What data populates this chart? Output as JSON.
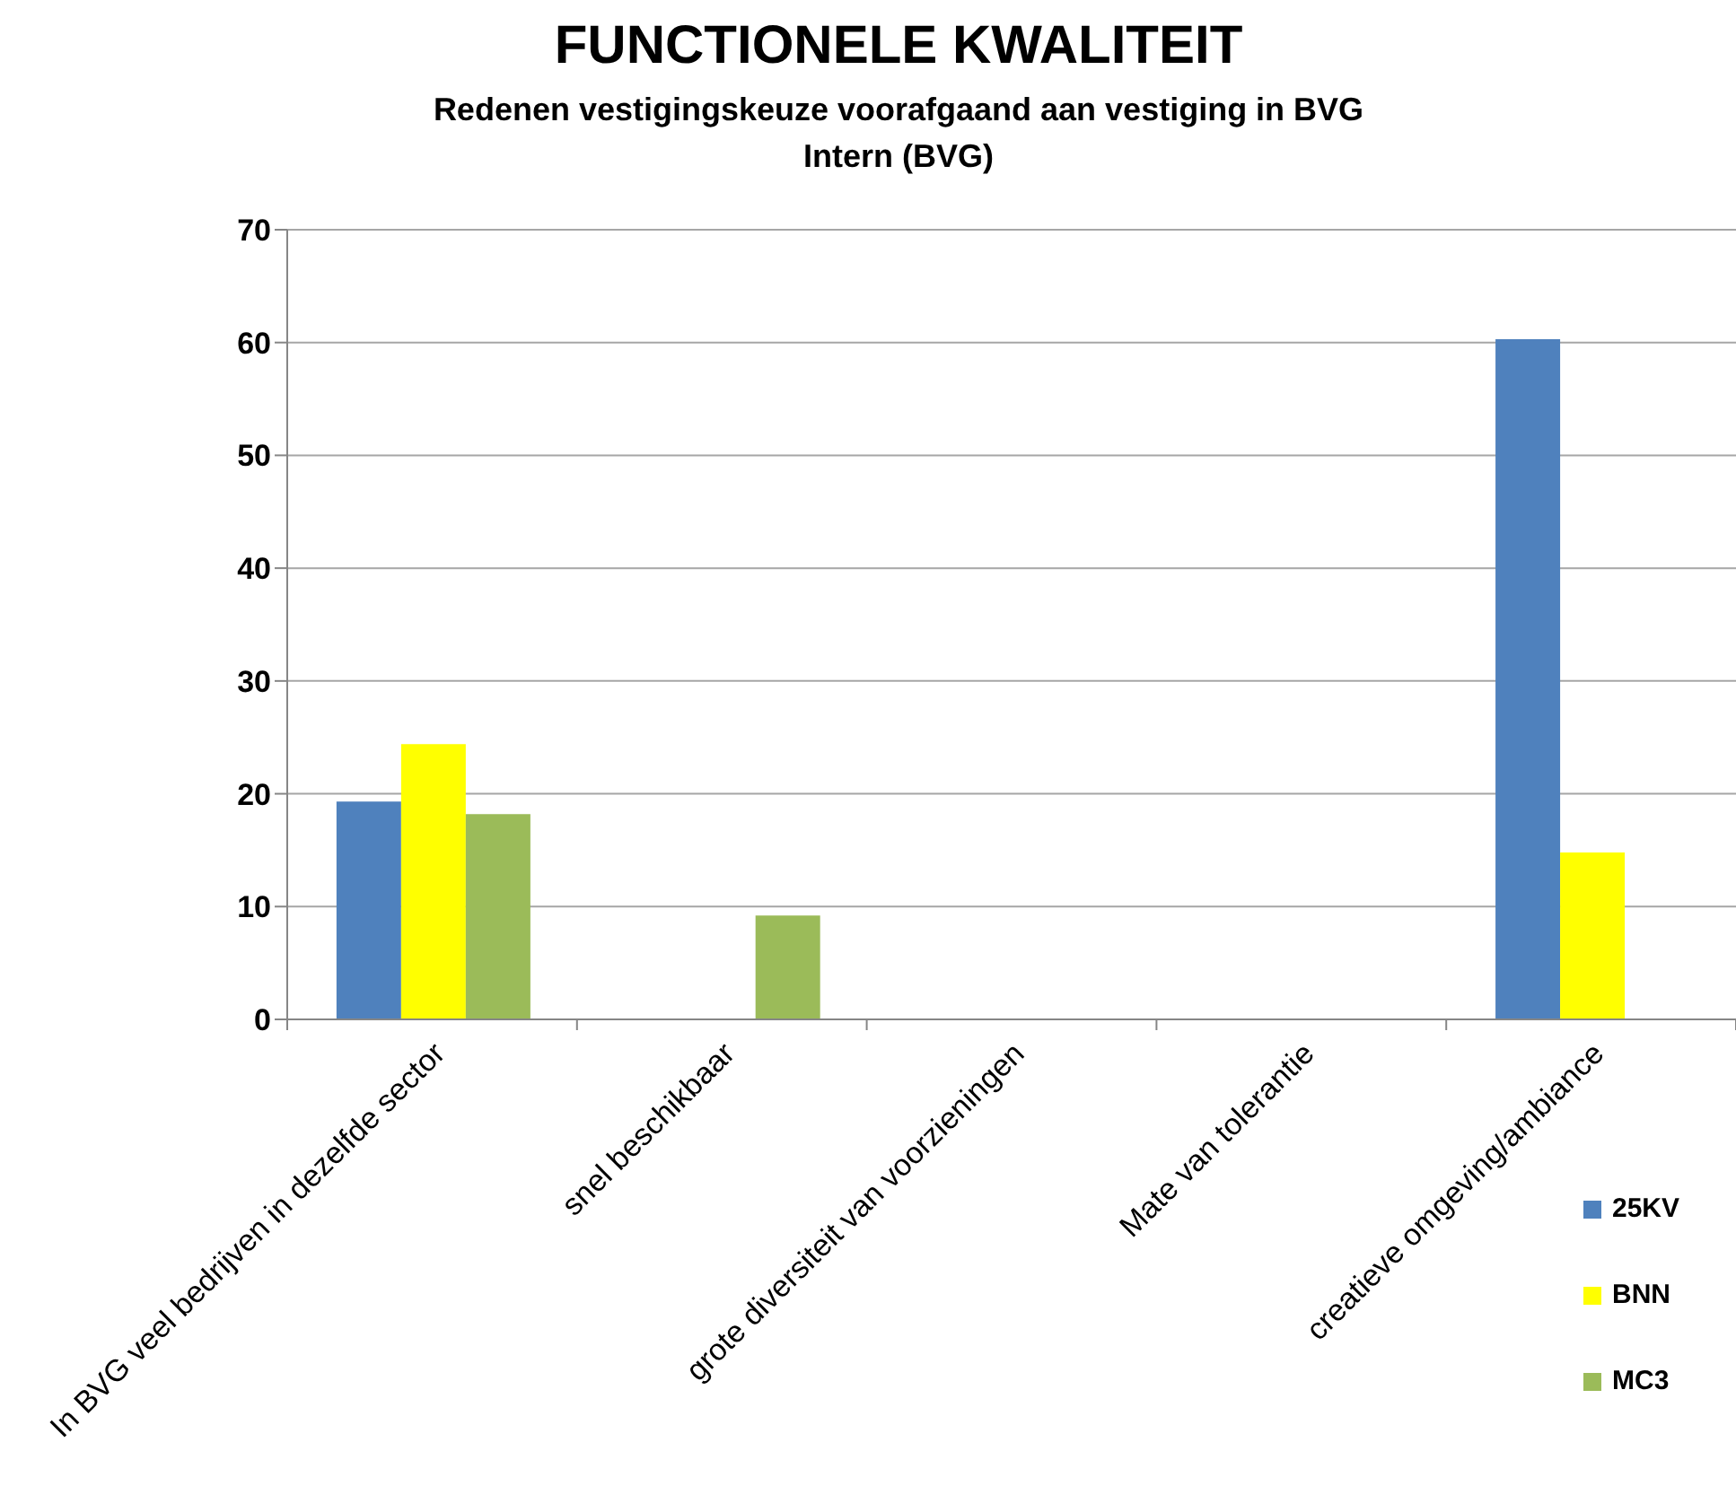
{
  "chart_data": {
    "type": "bar",
    "title": "FUNCTIONELE KWALITEIT",
    "subtitle": "Redenen vestigingskeuze voorafgaand aan vestiging in BVG\nIntern (BVG)",
    "categories": [
      "In BVG veel bedrijven in dezelfde sector",
      "snel beschikbaar",
      "grote diversiteit van voorzieningen",
      "Mate van tolerantie",
      "creatieve omgeving/ambiance"
    ],
    "series": [
      {
        "name": "25KV",
        "color": "#4f81bd",
        "values": [
          19.3,
          0,
          0,
          0,
          60.3
        ]
      },
      {
        "name": "BNN",
        "color": "#ffff00",
        "values": [
          24.4,
          0,
          0,
          0,
          14.8
        ]
      },
      {
        "name": "MC3",
        "color": "#9bbb59",
        "values": [
          18.2,
          9.2,
          0,
          0,
          0
        ]
      }
    ],
    "ylim": [
      0,
      70
    ],
    "yticks": [
      0,
      10,
      20,
      30,
      40,
      50,
      60,
      70
    ],
    "grid": "y",
    "legend": "bottom right"
  }
}
